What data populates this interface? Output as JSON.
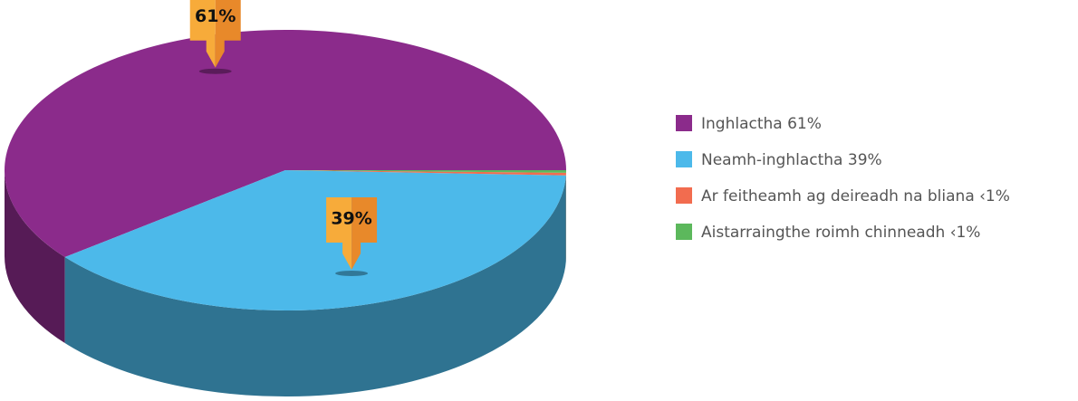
{
  "chart_data": {
    "type": "pie",
    "categories": [
      "Inghlactha 61%",
      "Neamh-inghlactha 39%",
      "Ar feitheamh ag deireadh na bliana ‹1%",
      "Aistarraingthe roimh chinneadh ‹1%"
    ],
    "values": [
      61,
      39,
      0.3,
      0.3
    ],
    "value_labels": [
      "61%",
      "39%",
      null,
      null
    ],
    "colors": [
      "#8b2b8b",
      "#4cb9ea",
      "#f26c4f",
      "#5cb85c"
    ],
    "legend": "right"
  }
}
